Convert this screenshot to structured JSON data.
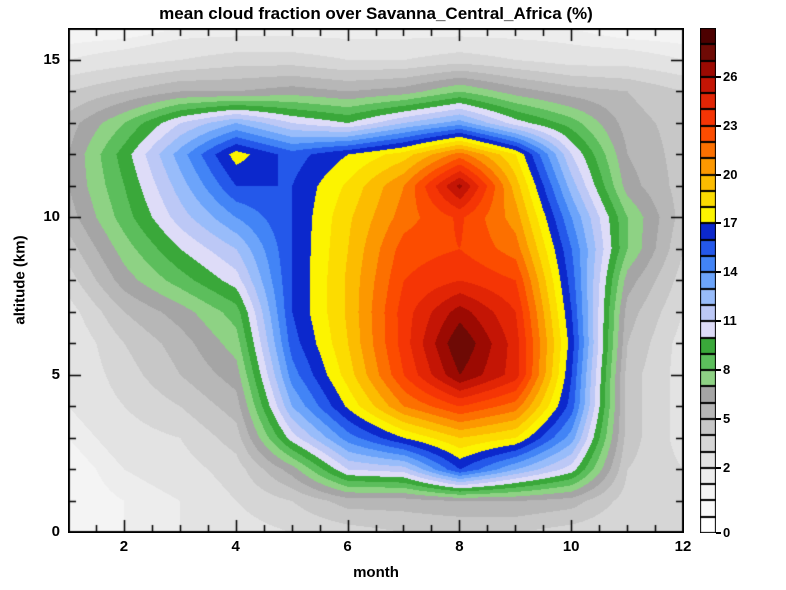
{
  "chart_data": {
    "type": "filled_contour",
    "title": "mean cloud fraction over Savanna_Central_Africa (%)",
    "xlabel": "month",
    "ylabel": "altitude (km)",
    "unit": "%",
    "x_range": [
      1,
      12
    ],
    "y_range": [
      0,
      16
    ],
    "grid_on": false,
    "legend_position": "right-colorbar",
    "months": [
      1,
      2,
      3,
      4,
      5,
      6,
      7,
      8,
      9,
      10,
      11,
      12
    ],
    "altitudes_km": [
      0,
      1,
      2,
      3,
      4,
      5,
      6,
      7,
      8,
      9,
      10,
      11,
      12,
      13,
      14,
      15,
      16
    ],
    "values_percent": [
      [
        1.0,
        1.5,
        2.0,
        2.5,
        3.0,
        3.5,
        4.0,
        4.0,
        4.0,
        3.5,
        3.0,
        4.0
      ],
      [
        1.0,
        1.5,
        2.0,
        3.0,
        4.0,
        5.5,
        5.5,
        6.0,
        6.0,
        5.5,
        3.5,
        4.0
      ],
      [
        1.0,
        2.0,
        2.5,
        3.5,
        6.5,
        11.0,
        11.5,
        16.0,
        13.0,
        10.5,
        4.0,
        3.0
      ],
      [
        1.5,
        2.5,
        3.0,
        4.5,
        10.5,
        14.5,
        17.0,
        19.0,
        18.0,
        13.5,
        4.5,
        2.5
      ],
      [
        2.0,
        3.0,
        4.0,
        5.5,
        13.0,
        17.2,
        21.0,
        23.0,
        21.5,
        15.5,
        4.5,
        2.5
      ],
      [
        2.0,
        3.5,
        5.0,
        6.5,
        14.5,
        18.5,
        23.0,
        27.0,
        24.5,
        16.0,
        4.5,
        2.5
      ],
      [
        2.0,
        4.0,
        5.5,
        7.5,
        15.5,
        19.0,
        23.5,
        28.0,
        24.5,
        16.5,
        5.0,
        2.5
      ],
      [
        2.5,
        5.0,
        6.5,
        8.5,
        16.0,
        19.2,
        23.5,
        26.5,
        24.0,
        16.0,
        5.5,
        3.0
      ],
      [
        3.5,
        6.5,
        8.5,
        10.5,
        16.0,
        19.2,
        23.0,
        24.0,
        23.0,
        15.5,
        6.5,
        3.5
      ],
      [
        4.5,
        7.5,
        10.0,
        12.0,
        16.0,
        19.0,
        22.5,
        23.0,
        21.5,
        15.0,
        8.0,
        4.0
      ],
      [
        5.5,
        8.5,
        11.5,
        14.0,
        16.0,
        18.8,
        21.5,
        23.2,
        20.5,
        14.0,
        8.0,
        4.5
      ],
      [
        6.0,
        9.0,
        12.5,
        16.0,
        16.0,
        18.2,
        21.0,
        26.3,
        19.5,
        12.5,
        6.5,
        4.5
      ],
      [
        6.0,
        9.5,
        13.5,
        17.5,
        15.5,
        17.0,
        18.5,
        21.5,
        18.0,
        11.0,
        6.0,
        4.5
      ],
      [
        5.5,
        8.0,
        11.0,
        13.0,
        11.0,
        10.0,
        12.0,
        13.5,
        10.5,
        8.5,
        5.5,
        4.5
      ],
      [
        4.0,
        5.0,
        6.0,
        6.0,
        6.5,
        6.0,
        6.5,
        8.0,
        6.5,
        5.5,
        5.0,
        4.0
      ],
      [
        2.0,
        2.5,
        3.0,
        3.5,
        3.5,
        3.0,
        3.0,
        3.5,
        3.0,
        2.5,
        2.5,
        2.0
      ],
      [
        1.0,
        1.0,
        1.5,
        1.5,
        1.5,
        1.5,
        1.5,
        1.5,
        1.5,
        1.5,
        1.0,
        1.0
      ]
    ],
    "x_major_ticks": {
      "values": [
        2,
        4,
        6,
        8,
        10,
        12
      ],
      "labels": [
        "2",
        "4",
        "6",
        "8",
        "10",
        "12"
      ]
    },
    "x_minor_step": 0.5,
    "y_major_ticks": {
      "values": [
        0,
        5,
        10,
        15
      ],
      "labels": [
        "0",
        "5",
        "10",
        "15"
      ]
    },
    "y_minor_step": 1,
    "colorbar": {
      "tick_values": [
        0,
        2,
        5,
        8,
        11,
        14,
        17,
        20,
        23,
        26
      ],
      "tick_labels": [
        "0",
        "2",
        "5",
        "8",
        "11",
        "14",
        "17",
        "20",
        "23",
        "26"
      ],
      "level_boundaries": [
        0,
        0.5,
        1,
        1.5,
        2,
        3,
        4,
        5,
        6,
        7,
        8,
        9,
        10,
        11,
        12,
        13,
        14,
        15,
        16,
        17,
        18,
        19,
        20,
        21,
        22,
        23,
        24,
        25,
        26,
        27,
        28,
        29
      ],
      "cell_colors": [
        "#ffffff",
        "#fafafa",
        "#f4f4f4",
        "#ededed",
        "#e3e3e3",
        "#d6d6d6",
        "#c7c7c7",
        "#b7b7b7",
        "#a5a5a5",
        "#8ed284",
        "#5cbe5c",
        "#3aa83a",
        "#dedcf8",
        "#bcc8f6",
        "#98bcfa",
        "#6ca4fa",
        "#4284f6",
        "#2458ea",
        "#0c28cc",
        "#fcf400",
        "#fcdc00",
        "#fcbc00",
        "#fc9800",
        "#fc7000",
        "#fc4c00",
        "#f53505",
        "#e22505",
        "#c41505",
        "#9c0a02",
        "#6e0a05",
        "#4c0000"
      ]
    }
  }
}
